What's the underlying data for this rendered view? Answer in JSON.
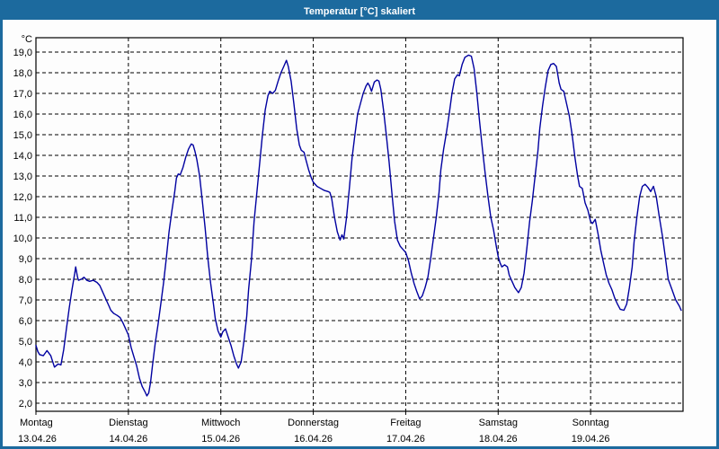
{
  "window": {
    "title": "Temperatur [°C] skaliert",
    "titlebar_color": "#1c6a9e",
    "background_color": "#fdfdfd"
  },
  "chart_data": {
    "type": "line",
    "title": "Temperatur [°C] skaliert",
    "grid": "dashed",
    "legend_position": "none",
    "colors": {
      "line": "#0000a0",
      "grid": "#000000",
      "axis": "#000000",
      "text": "#000000"
    },
    "y_axis": {
      "label": "°C",
      "min": 2.0,
      "max": 19.0,
      "tick_step": 1.0,
      "tick_values": [
        19,
        18,
        17,
        16,
        15,
        14,
        13,
        12,
        11,
        10,
        9,
        8,
        7,
        6,
        5,
        4,
        3,
        2
      ],
      "tick_labels": [
        "19,0",
        "18,0",
        "17,0",
        "16,0",
        "15,0",
        "14,0",
        "13,0",
        "12,0",
        "11,0",
        "10,0",
        "9,0",
        "8,0",
        "7,0",
        "6,0",
        "5,0",
        "4,0",
        "3,0",
        "2,0"
      ]
    },
    "x_axis": {
      "unit": "day",
      "range_days": 7,
      "days": [
        {
          "name": "Montag",
          "date": "13.04.26"
        },
        {
          "name": "Dienstag",
          "date": "14.04.26"
        },
        {
          "name": "Mittwoch",
          "date": "15.04.26"
        },
        {
          "name": "Donnerstag",
          "date": "16.04.26"
        },
        {
          "name": "Freitag",
          "date": "17.04.26"
        },
        {
          "name": "Samstag",
          "date": "18.04.26"
        },
        {
          "name": "Sonntag",
          "date": "19.04.26"
        }
      ]
    },
    "series": [
      {
        "name": "Temperatur",
        "color": "#0000a0",
        "points": [
          [
            0.0,
            4.8
          ],
          [
            0.02,
            4.5
          ],
          [
            0.04,
            4.35
          ],
          [
            0.08,
            4.3
          ],
          [
            0.12,
            4.55
          ],
          [
            0.16,
            4.3
          ],
          [
            0.2,
            3.75
          ],
          [
            0.24,
            3.9
          ],
          [
            0.27,
            3.85
          ],
          [
            0.3,
            4.6
          ],
          [
            0.33,
            5.6
          ],
          [
            0.36,
            6.6
          ],
          [
            0.39,
            7.5
          ],
          [
            0.42,
            8.3
          ],
          [
            0.43,
            8.6
          ],
          [
            0.45,
            8.1
          ],
          [
            0.46,
            7.95
          ],
          [
            0.49,
            8.0
          ],
          [
            0.52,
            8.1
          ],
          [
            0.55,
            7.95
          ],
          [
            0.58,
            7.9
          ],
          [
            0.62,
            7.95
          ],
          [
            0.66,
            7.85
          ],
          [
            0.69,
            7.7
          ],
          [
            0.72,
            7.4
          ],
          [
            0.76,
            7.0
          ],
          [
            0.79,
            6.7
          ],
          [
            0.81,
            6.5
          ],
          [
            0.84,
            6.35
          ],
          [
            0.88,
            6.25
          ],
          [
            0.91,
            6.15
          ],
          [
            0.94,
            5.9
          ],
          [
            0.97,
            5.6
          ],
          [
            1.0,
            5.3
          ],
          [
            1.03,
            4.7
          ],
          [
            1.06,
            4.25
          ],
          [
            1.09,
            3.8
          ],
          [
            1.12,
            3.2
          ],
          [
            1.15,
            2.8
          ],
          [
            1.18,
            2.55
          ],
          [
            1.2,
            2.35
          ],
          [
            1.22,
            2.5
          ],
          [
            1.24,
            3.0
          ],
          [
            1.26,
            3.8
          ],
          [
            1.29,
            4.9
          ],
          [
            1.32,
            5.8
          ],
          [
            1.35,
            6.8
          ],
          [
            1.38,
            7.8
          ],
          [
            1.41,
            9.0
          ],
          [
            1.44,
            10.3
          ],
          [
            1.47,
            11.3
          ],
          [
            1.5,
            12.2
          ],
          [
            1.52,
            12.9
          ],
          [
            1.54,
            13.1
          ],
          [
            1.56,
            13.05
          ],
          [
            1.59,
            13.4
          ],
          [
            1.62,
            13.9
          ],
          [
            1.65,
            14.3
          ],
          [
            1.68,
            14.55
          ],
          [
            1.7,
            14.5
          ],
          [
            1.72,
            14.2
          ],
          [
            1.74,
            13.8
          ],
          [
            1.77,
            13.0
          ],
          [
            1.8,
            11.8
          ],
          [
            1.83,
            10.5
          ],
          [
            1.86,
            9.0
          ],
          [
            1.89,
            7.8
          ],
          [
            1.92,
            6.8
          ],
          [
            1.94,
            6.1
          ],
          [
            1.97,
            5.5
          ],
          [
            2.0,
            5.2
          ],
          [
            2.02,
            5.45
          ],
          [
            2.05,
            5.6
          ],
          [
            2.08,
            5.2
          ],
          [
            2.11,
            4.8
          ],
          [
            2.14,
            4.3
          ],
          [
            2.17,
            3.9
          ],
          [
            2.19,
            3.7
          ],
          [
            2.22,
            4.0
          ],
          [
            2.25,
            5.0
          ],
          [
            2.28,
            6.2
          ],
          [
            2.3,
            7.5
          ],
          [
            2.33,
            8.9
          ],
          [
            2.36,
            10.8
          ],
          [
            2.39,
            12.2
          ],
          [
            2.42,
            13.6
          ],
          [
            2.45,
            15.0
          ],
          [
            2.48,
            16.2
          ],
          [
            2.51,
            16.9
          ],
          [
            2.53,
            17.1
          ],
          [
            2.56,
            17.0
          ],
          [
            2.59,
            17.15
          ],
          [
            2.62,
            17.6
          ],
          [
            2.65,
            18.0
          ],
          [
            2.68,
            18.3
          ],
          [
            2.71,
            18.6
          ],
          [
            2.73,
            18.3
          ],
          [
            2.76,
            17.6
          ],
          [
            2.79,
            16.5
          ],
          [
            2.82,
            15.3
          ],
          [
            2.85,
            14.5
          ],
          [
            2.87,
            14.25
          ],
          [
            2.9,
            14.15
          ],
          [
            2.92,
            13.8
          ],
          [
            2.95,
            13.3
          ],
          [
            2.98,
            12.9
          ],
          [
            3.0,
            12.7
          ],
          [
            3.04,
            12.5
          ],
          [
            3.08,
            12.4
          ],
          [
            3.12,
            12.3
          ],
          [
            3.16,
            12.25
          ],
          [
            3.18,
            12.2
          ],
          [
            3.2,
            11.9
          ],
          [
            3.23,
            11.0
          ],
          [
            3.26,
            10.3
          ],
          [
            3.29,
            9.9
          ],
          [
            3.31,
            10.15
          ],
          [
            3.33,
            9.95
          ],
          [
            3.36,
            11.0
          ],
          [
            3.39,
            12.4
          ],
          [
            3.42,
            13.9
          ],
          [
            3.45,
            15.0
          ],
          [
            3.48,
            16.0
          ],
          [
            3.51,
            16.5
          ],
          [
            3.54,
            17.0
          ],
          [
            3.57,
            17.35
          ],
          [
            3.59,
            17.5
          ],
          [
            3.61,
            17.35
          ],
          [
            3.63,
            17.1
          ],
          [
            3.66,
            17.55
          ],
          [
            3.69,
            17.65
          ],
          [
            3.71,
            17.6
          ],
          [
            3.73,
            17.2
          ],
          [
            3.76,
            16.2
          ],
          [
            3.79,
            15.0
          ],
          [
            3.82,
            13.7
          ],
          [
            3.85,
            12.2
          ],
          [
            3.88,
            10.8
          ],
          [
            3.91,
            9.9
          ],
          [
            3.94,
            9.6
          ],
          [
            3.97,
            9.45
          ],
          [
            4.0,
            9.3
          ],
          [
            4.03,
            8.9
          ],
          [
            4.06,
            8.3
          ],
          [
            4.09,
            7.8
          ],
          [
            4.12,
            7.4
          ],
          [
            4.15,
            7.05
          ],
          [
            4.18,
            7.2
          ],
          [
            4.21,
            7.6
          ],
          [
            4.24,
            8.1
          ],
          [
            4.27,
            9.0
          ],
          [
            4.3,
            10.0
          ],
          [
            4.33,
            11.0
          ],
          [
            4.36,
            12.2
          ],
          [
            4.38,
            13.3
          ],
          [
            4.41,
            14.3
          ],
          [
            4.44,
            15.1
          ],
          [
            4.47,
            16.0
          ],
          [
            4.5,
            17.0
          ],
          [
            4.53,
            17.7
          ],
          [
            4.56,
            17.9
          ],
          [
            4.58,
            17.85
          ],
          [
            4.61,
            18.4
          ],
          [
            4.64,
            18.75
          ],
          [
            4.68,
            18.85
          ],
          [
            4.71,
            18.8
          ],
          [
            4.74,
            18.2
          ],
          [
            4.77,
            17.0
          ],
          [
            4.8,
            15.6
          ],
          [
            4.83,
            14.3
          ],
          [
            4.86,
            13.1
          ],
          [
            4.89,
            12.0
          ],
          [
            4.92,
            11.0
          ],
          [
            4.95,
            10.4
          ],
          [
            4.98,
            9.6
          ],
          [
            5.0,
            9.1
          ],
          [
            5.02,
            8.8
          ],
          [
            5.04,
            8.6
          ],
          [
            5.07,
            8.7
          ],
          [
            5.1,
            8.6
          ],
          [
            5.12,
            8.2
          ],
          [
            5.15,
            7.9
          ],
          [
            5.18,
            7.6
          ],
          [
            5.22,
            7.35
          ],
          [
            5.25,
            7.6
          ],
          [
            5.28,
            8.3
          ],
          [
            5.31,
            9.5
          ],
          [
            5.34,
            10.8
          ],
          [
            5.37,
            11.8
          ],
          [
            5.4,
            13.0
          ],
          [
            5.43,
            14.2
          ],
          [
            5.45,
            15.3
          ],
          [
            5.48,
            16.4
          ],
          [
            5.51,
            17.3
          ],
          [
            5.54,
            18.1
          ],
          [
            5.57,
            18.4
          ],
          [
            5.6,
            18.45
          ],
          [
            5.63,
            18.3
          ],
          [
            5.66,
            17.5
          ],
          [
            5.68,
            17.2
          ],
          [
            5.71,
            17.1
          ],
          [
            5.74,
            16.5
          ],
          [
            5.77,
            15.9
          ],
          [
            5.8,
            15.0
          ],
          [
            5.83,
            13.9
          ],
          [
            5.86,
            13.0
          ],
          [
            5.88,
            12.5
          ],
          [
            5.91,
            12.4
          ],
          [
            5.94,
            11.7
          ],
          [
            5.97,
            11.35
          ],
          [
            6.0,
            10.8
          ],
          [
            6.02,
            10.7
          ],
          [
            6.05,
            10.9
          ],
          [
            6.08,
            10.2
          ],
          [
            6.11,
            9.4
          ],
          [
            6.14,
            8.8
          ],
          [
            6.17,
            8.2
          ],
          [
            6.2,
            7.8
          ],
          [
            6.23,
            7.5
          ],
          [
            6.26,
            7.1
          ],
          [
            6.29,
            6.8
          ],
          [
            6.32,
            6.55
          ],
          [
            6.36,
            6.5
          ],
          [
            6.39,
            6.8
          ],
          [
            6.42,
            7.6
          ],
          [
            6.45,
            8.6
          ],
          [
            6.47,
            9.8
          ],
          [
            6.5,
            11.0
          ],
          [
            6.53,
            12.0
          ],
          [
            6.56,
            12.5
          ],
          [
            6.59,
            12.6
          ],
          [
            6.62,
            12.45
          ],
          [
            6.65,
            12.25
          ],
          [
            6.68,
            12.5
          ],
          [
            6.71,
            12.0
          ],
          [
            6.74,
            11.1
          ],
          [
            6.78,
            10.0
          ],
          [
            6.81,
            9.0
          ],
          [
            6.84,
            8.0
          ],
          [
            6.88,
            7.5
          ],
          [
            6.92,
            7.0
          ],
          [
            6.96,
            6.7
          ],
          [
            6.98,
            6.5
          ]
        ]
      }
    ]
  }
}
